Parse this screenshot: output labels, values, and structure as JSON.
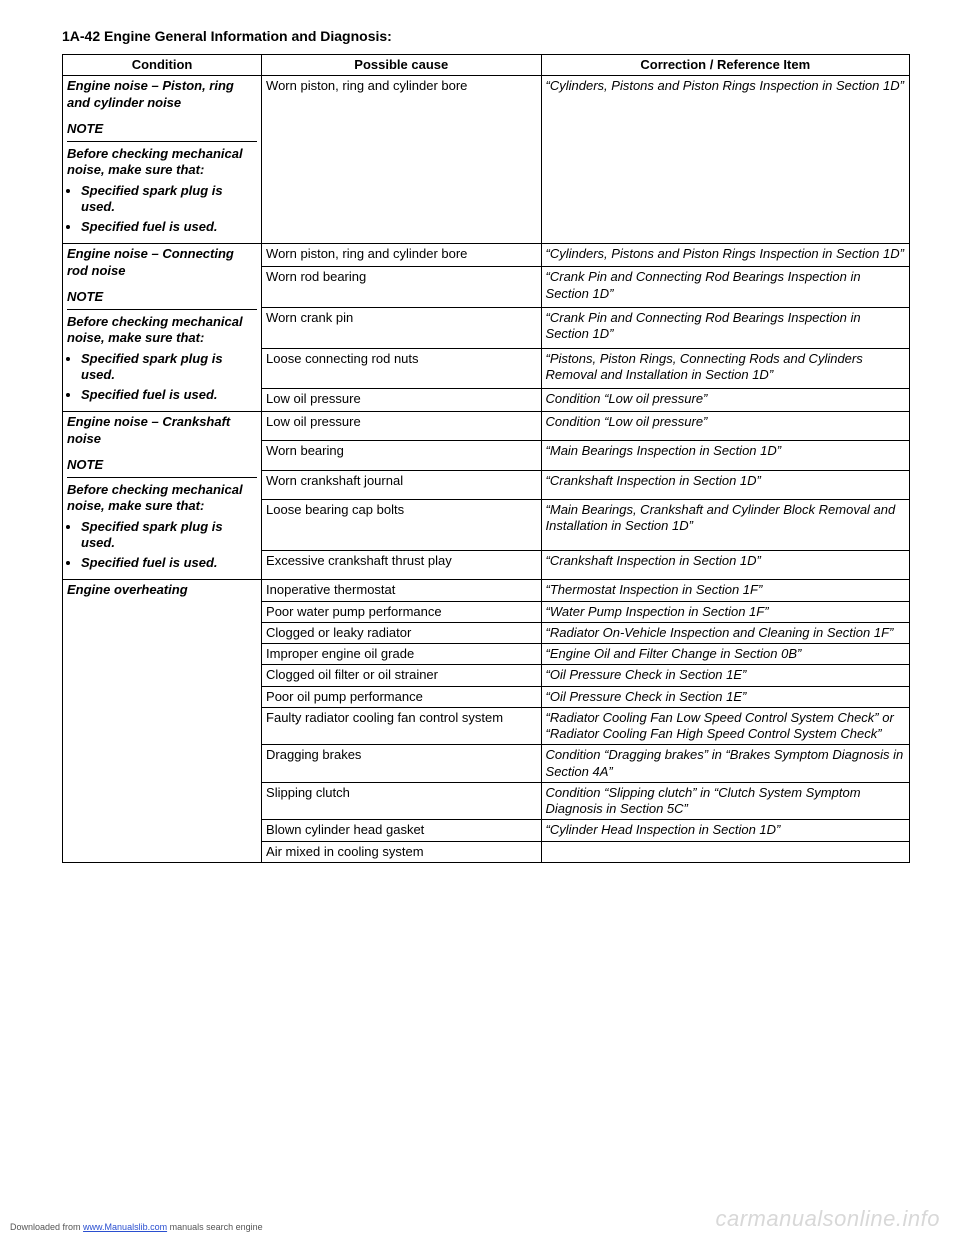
{
  "header": "1A-42   Engine General Information and Diagnosis:",
  "columns": {
    "c1": "Condition",
    "c2": "Possible cause",
    "c3": "Correction / Reference Item"
  },
  "sections": [
    {
      "condition": {
        "title": "Engine noise – Piston, ring and cylinder noise",
        "note_label": "NOTE",
        "note_text": "Before checking mechanical noise, make sure that:",
        "bullets": [
          "Specified spark plug is used.",
          "Specified fuel is used."
        ]
      },
      "rows": [
        {
          "cause": "Worn piston, ring and cylinder bore",
          "corr": "“Cylinders, Pistons and Piston Rings Inspection in Section 1D”"
        }
      ]
    },
    {
      "condition": {
        "title": "Engine noise – Connecting rod noise",
        "note_label": "NOTE",
        "note_text": "Before checking mechanical noise, make sure that:",
        "bullets": [
          "Specified spark plug is used.",
          "Specified fuel is used."
        ]
      },
      "rows": [
        {
          "cause": "Worn piston, ring and cylinder bore",
          "corr": "“Cylinders, Pistons and Piston Rings Inspection in Section 1D”"
        },
        {
          "cause": "Worn rod bearing",
          "corr": "“Crank Pin and Connecting Rod Bearings Inspection in Section 1D”"
        },
        {
          "cause": "Worn crank pin",
          "corr": "“Crank Pin and Connecting Rod Bearings Inspection in Section 1D”"
        },
        {
          "cause": "Loose connecting rod nuts",
          "corr": "“Pistons, Piston Rings, Connecting Rods and Cylinders Removal and Installation in Section 1D”"
        },
        {
          "cause": "Low oil pressure",
          "corr": "Condition “Low oil pressure”"
        }
      ]
    },
    {
      "condition": {
        "title": "Engine noise – Crankshaft noise",
        "note_label": "NOTE",
        "note_text": "Before checking mechanical noise, make sure that:",
        "bullets": [
          "Specified spark plug is used.",
          "Specified fuel is used."
        ]
      },
      "rows": [
        {
          "cause": "Low oil pressure",
          "corr": "Condition “Low oil pressure”"
        },
        {
          "cause": "Worn bearing",
          "corr": "“Main Bearings Inspection in Section 1D”"
        },
        {
          "cause": "Worn crankshaft journal",
          "corr": "“Crankshaft Inspection in Section 1D”"
        },
        {
          "cause": "Loose bearing cap bolts",
          "corr": "“Main Bearings, Crankshaft and Cylinder Block Removal and Installation in Section 1D”"
        },
        {
          "cause": "Excessive crankshaft thrust play",
          "corr": "“Crankshaft Inspection in Section 1D”"
        }
      ]
    },
    {
      "condition": {
        "title": "Engine overheating"
      },
      "rows": [
        {
          "cause": "Inoperative thermostat",
          "corr": "“Thermostat Inspection in Section 1F”"
        },
        {
          "cause": "Poor water pump performance",
          "corr": "“Water Pump Inspection in Section 1F”"
        },
        {
          "cause": "Clogged or leaky radiator",
          "corr": "“Radiator On-Vehicle Inspection and Cleaning in Section 1F”"
        },
        {
          "cause": "Improper engine oil grade",
          "corr": "“Engine Oil and Filter Change in Section 0B”"
        },
        {
          "cause": "Clogged oil filter or oil strainer",
          "corr": "“Oil Pressure Check in Section 1E”"
        },
        {
          "cause": "Poor oil pump performance",
          "corr": "“Oil Pressure Check in Section 1E”"
        },
        {
          "cause": "Faulty radiator cooling fan control system",
          "corr": "“Radiator Cooling Fan Low Speed Control System Check” or “Radiator Cooling Fan High Speed Control System Check”"
        },
        {
          "cause": "Dragging brakes",
          "corr": "Condition “Dragging brakes” in “Brakes Symptom Diagnosis in Section 4A”"
        },
        {
          "cause": "Slipping clutch",
          "corr": "Condition “Slipping clutch” in “Clutch System Symptom Diagnosis in Section 5C”"
        },
        {
          "cause": "Blown cylinder head gasket",
          "corr": "“Cylinder Head Inspection in Section 1D”"
        },
        {
          "cause": "Air mixed in cooling system",
          "corr": ""
        }
      ]
    }
  ],
  "footer": {
    "prefix": "Downloaded from ",
    "link": "www.Manualslib.com",
    "suffix": " manuals search engine"
  },
  "watermark": "carmanualsonline.info"
}
